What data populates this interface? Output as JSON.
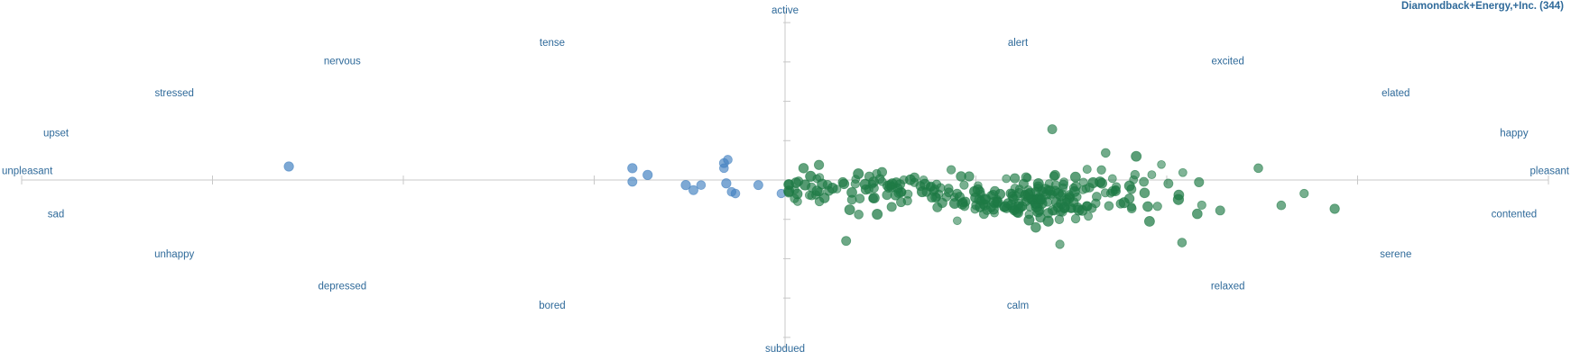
{
  "chart_data": {
    "type": "scatter",
    "title": "Diamondback+Energy,+Inc. (344)",
    "xlim": [
      -1,
      1
    ],
    "ylim": [
      -1,
      1
    ],
    "grid": false,
    "colors": {
      "negative": "#3f7fbf",
      "positive": "#1e7a45",
      "axis": "#c8c8c8",
      "label": "#2f6a9a"
    },
    "mood_labels": {
      "active": "active",
      "subdued": "subdued",
      "unpleasant": "unpleasant",
      "pleasant": "pleasant",
      "tense": "tense",
      "nervous": "nervous",
      "stressed": "stressed",
      "upset": "upset",
      "sad": "sad",
      "unhappy": "unhappy",
      "depressed": "depressed",
      "bored": "bored",
      "alert": "alert",
      "excited": "excited",
      "elated": "elated",
      "happy": "happy",
      "contented": "contented",
      "serene": "serene",
      "relaxed": "relaxed",
      "calm": "calm"
    },
    "negative_points": [
      [
        -0.65,
        0.08,
        0.6
      ],
      [
        -0.2,
        0.07,
        0.6
      ],
      [
        -0.2,
        -0.01,
        0.55
      ],
      [
        -0.13,
        -0.03,
        0.6
      ],
      [
        -0.12,
        -0.06,
        0.55
      ],
      [
        -0.11,
        -0.03,
        0.5
      ],
      [
        -0.08,
        0.1,
        0.55
      ],
      [
        -0.08,
        0.07,
        0.5
      ],
      [
        -0.077,
        -0.02,
        0.6
      ],
      [
        -0.07,
        -0.07,
        0.5
      ],
      [
        -0.065,
        -0.08,
        0.5
      ],
      [
        -0.035,
        -0.03,
        0.55
      ],
      [
        -0.005,
        -0.08,
        0.45
      ],
      [
        -0.18,
        0.03,
        0.6
      ],
      [
        -0.075,
        0.12,
        0.5
      ]
    ],
    "positive_points": [
      [
        0.35,
        0.3,
        0.55
      ],
      [
        0.46,
        0.14,
        0.7
      ],
      [
        0.42,
        0.16,
        0.5
      ],
      [
        0.62,
        0.07,
        0.5
      ],
      [
        0.54,
        -0.2,
        0.65
      ],
      [
        0.57,
        -0.18,
        0.55
      ],
      [
        0.65,
        -0.15,
        0.5
      ],
      [
        0.72,
        -0.17,
        0.6
      ],
      [
        0.68,
        -0.08,
        0.45
      ],
      [
        0.52,
        -0.37,
        0.5
      ],
      [
        0.08,
        -0.36,
        0.55
      ],
      [
        0.36,
        -0.38,
        0.45
      ]
    ]
  }
}
